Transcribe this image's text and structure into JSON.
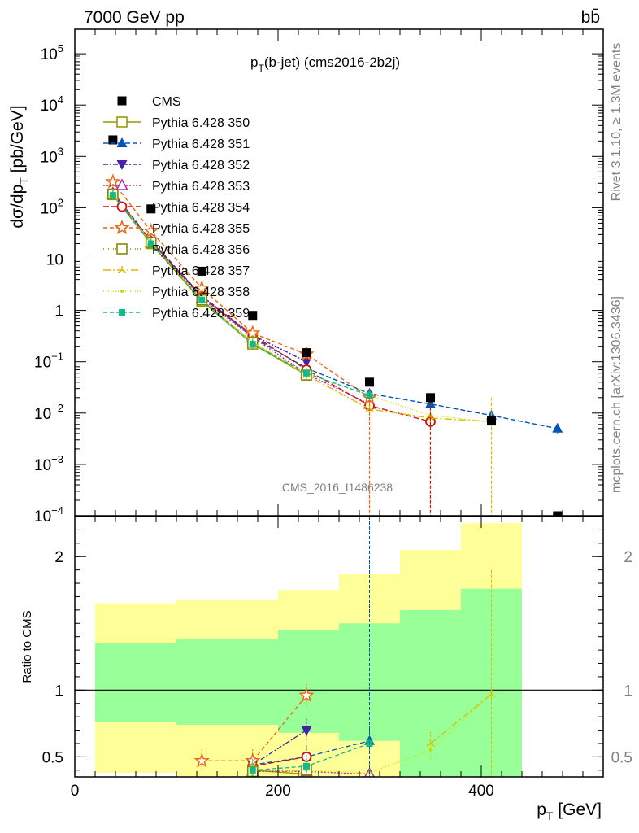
{
  "header": {
    "left": "7000 GeV pp",
    "right": "bb̄",
    "side_top": "Rivet 3.1.10, ≥ 1.3M events",
    "side_bottom": "mcplots.cern.ch [arXiv:1306.3436]",
    "watermark": "CMS_2016_I1486238"
  },
  "chart_data": [
    {
      "type": "line",
      "title": "p_T(b-jet) (cms2016-2b2j)",
      "title_main": "p",
      "title_sub": "T",
      "title_rest": "(b-jet) (cms2016-2b2j)",
      "ylabel": "dσ/dp_T [pb/GeV]",
      "ylabel_main": "dσ/dp",
      "ylabel_sub": "T",
      "ylabel_rest": " [pb/GeV]",
      "yscale": "log",
      "ylim": [
        0.0001,
        300000
      ],
      "xlim": [
        0,
        520
      ],
      "yticks": [
        {
          "v": 0.0001,
          "m": "10",
          "e": "−4"
        },
        {
          "v": 0.001,
          "m": "10",
          "e": "−3"
        },
        {
          "v": 0.01,
          "m": "10",
          "e": "−2"
        },
        {
          "v": 0.1,
          "m": "10",
          "e": "−1"
        },
        {
          "v": 1,
          "m": "1",
          "e": ""
        },
        {
          "v": 10,
          "m": "10",
          "e": ""
        },
        {
          "v": 100,
          "m": "10",
          "e": "2"
        },
        {
          "v": 1000,
          "m": "10",
          "e": "3"
        },
        {
          "v": 10000,
          "m": "10",
          "e": "4"
        },
        {
          "v": 100000,
          "m": "10",
          "e": "5"
        }
      ],
      "legend_position": "top-left",
      "data": {
        "name": "CMS",
        "color": "#000000",
        "x": [
          37.5,
          75,
          125,
          175,
          228,
          290,
          350,
          410,
          475
        ],
        "y": [
          2100,
          95,
          5.8,
          0.8,
          0.15,
          0.04,
          0.02,
          0.007,
          0.0001
        ]
      },
      "series": [
        {
          "name": "Pythia 6.428 350",
          "color": "#999900",
          "marker": "open-square",
          "dash": "solid",
          "x": [
            37.5,
            75,
            125,
            175,
            228
          ],
          "y": [
            180,
            20,
            1.5,
            0.22,
            0.055
          ]
        },
        {
          "name": "Pythia 6.428 351",
          "color": "#0055bb",
          "marker": "filled-triangle-up",
          "dash": "6,3",
          "x": [
            37.5,
            75,
            125,
            175,
            228,
            290,
            350,
            410,
            475
          ],
          "y": [
            200,
            23,
            1.9,
            0.3,
            0.075,
            0.024,
            0.015,
            0.009,
            0.005
          ]
        },
        {
          "name": "Pythia 6.428 352",
          "color": "#4422aa",
          "marker": "filled-triangle-down",
          "dash": "6,2,2,2",
          "x": [
            37.5,
            75,
            125,
            175,
            228
          ],
          "y": [
            190,
            22,
            1.9,
            0.33,
            0.1
          ]
        },
        {
          "name": "Pythia 6.428 353",
          "color": "#bb22aa",
          "marker": "open-triangle-up",
          "dash": "2,2",
          "x": [
            37.5,
            75,
            125,
            175,
            228,
            290
          ],
          "y": [
            185,
            21,
            1.7,
            0.3,
            0.058,
            0.015
          ]
        },
        {
          "name": "Pythia 6.428 354",
          "color": "#cc1111",
          "marker": "open-circle",
          "dash": "7,3",
          "x": [
            37.5,
            75,
            125,
            175,
            228,
            290,
            350
          ],
          "y": [
            190,
            22,
            1.8,
            0.33,
            0.07,
            0.014,
            0.0068
          ]
        },
        {
          "name": "Pythia 6.428 355",
          "color": "#ee6611",
          "marker": "open-star",
          "dash": "5,3",
          "x": [
            37.5,
            75,
            125,
            175,
            228,
            290
          ],
          "y": [
            320,
            35,
            2.7,
            0.36,
            0.14,
            0.02
          ]
        },
        {
          "name": "Pythia 6.428 356",
          "color": "#888800",
          "marker": "open-square",
          "dash": "1,2",
          "x": [
            37.5,
            75,
            125,
            175,
            228
          ],
          "y": [
            185,
            21,
            1.6,
            0.24,
            0.055
          ]
        },
        {
          "name": "Pythia 6.428 357",
          "color": "#ddbb00",
          "marker": "tri",
          "dash": "9,3,2,3",
          "x": [
            37.5,
            75,
            125,
            175,
            228,
            290,
            350,
            410
          ],
          "y": [
            185,
            21,
            1.6,
            0.24,
            0.055,
            0.012,
            0.008,
            0.0068
          ]
        },
        {
          "name": "Pythia 6.428 358",
          "color": "#ccdd00",
          "marker": "small-dot",
          "dash": "1,2",
          "x": [
            37.5,
            75,
            125,
            175,
            228,
            290,
            350,
            410
          ],
          "y": [
            185,
            21,
            1.6,
            0.24,
            0.06,
            0.022,
            0.009,
            0.0068
          ]
        },
        {
          "name": "Pythia 6.428 359",
          "color": "#11bb88",
          "marker": "filled-square",
          "dash": "5,3",
          "x": [
            37.5,
            75,
            125,
            175,
            228,
            290
          ],
          "y": [
            175,
            20,
            1.6,
            0.22,
            0.06,
            0.022
          ]
        }
      ]
    },
    {
      "type": "line",
      "title": "",
      "xlabel": "p_T [GeV]",
      "xlabel_main": "p",
      "xlabel_sub": "T",
      "xlabel_rest": " [GeV]",
      "ylabel": "Ratio to CMS",
      "ylim": [
        0.35,
        2.3
      ],
      "xlim": [
        0,
        520
      ],
      "xticks": [
        0,
        200,
        400
      ],
      "yticks": [
        0.5,
        1,
        2
      ],
      "reference_line": 1,
      "bands": [
        {
          "x0": 20,
          "x1": 100,
          "yellow": [
            0.38,
            1.65
          ],
          "green": [
            0.76,
            1.35
          ]
        },
        {
          "x0": 100,
          "x1": 200,
          "yellow": [
            0.33,
            1.68
          ],
          "green": [
            0.74,
            1.38
          ]
        },
        {
          "x0": 200,
          "x1": 260,
          "yellow": [
            0.33,
            1.75
          ],
          "green": [
            0.68,
            1.45
          ]
        },
        {
          "x0": 260,
          "x1": 320,
          "yellow": [
            0.33,
            1.87
          ],
          "green": [
            0.62,
            1.5
          ]
        },
        {
          "x0": 320,
          "x1": 380,
          "yellow": [
            0.33,
            2.05
          ],
          "green": [
            0.33,
            1.6
          ]
        },
        {
          "x0": 380,
          "x1": 440,
          "yellow": [
            0.33,
            2.25
          ],
          "green": [
            0.33,
            1.76
          ]
        }
      ],
      "series": [
        {
          "name": "Pythia 6.428 350",
          "x": [
            175,
            228
          ],
          "y": [
            0.4,
            0.37
          ]
        },
        {
          "name": "Pythia 6.428 351",
          "x": [
            175,
            228,
            290
          ],
          "y": [
            0.44,
            0.5,
            0.62
          ]
        },
        {
          "name": "Pythia 6.428 352",
          "x": [
            175,
            228
          ],
          "y": [
            0.44,
            0.7
          ]
        },
        {
          "name": "Pythia 6.428 353",
          "x": [
            175,
            228,
            290
          ],
          "y": [
            0.39,
            0.39,
            0.37
          ]
        },
        {
          "name": "Pythia 6.428 354",
          "x": [
            175,
            228
          ],
          "y": [
            0.43,
            0.5
          ]
        },
        {
          "name": "Pythia 6.428 355",
          "x": [
            125,
            175,
            228
          ],
          "y": [
            0.47,
            0.47,
            0.96
          ]
        },
        {
          "name": "Pythia 6.428 356",
          "x": [
            175,
            228
          ],
          "y": [
            0.39,
            0.4
          ]
        },
        {
          "name": "Pythia 6.428 357",
          "x": [
            350,
            410
          ],
          "y": [
            0.6,
            0.97
          ]
        },
        {
          "name": "Pythia 6.428 358",
          "x": [
            175,
            228,
            290,
            350,
            410
          ],
          "y": [
            0.37,
            0.4,
            0.38,
            0.55,
            0.97
          ]
        },
        {
          "name": "Pythia 6.428 359",
          "x": [
            175,
            228,
            290
          ],
          "y": [
            0.4,
            0.43,
            0.6
          ]
        }
      ]
    }
  ]
}
